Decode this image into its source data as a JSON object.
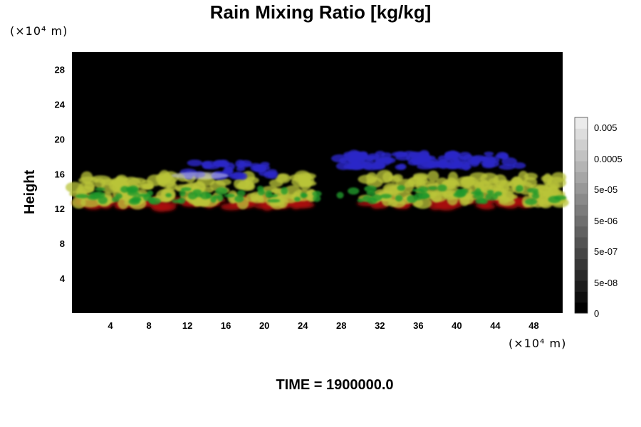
{
  "chart_data": {
    "type": "heatmap",
    "title": "Rain Mixing Ratio [kg/kg]",
    "ylabel": "Height",
    "xlabel": "",
    "x_unit": "(×10⁴ m)",
    "y_unit": "(×10⁴ m)",
    "xlim": [
      0,
      51
    ],
    "ylim": [
      0,
      30
    ],
    "x_ticks": [
      4,
      8,
      12,
      16,
      20,
      24,
      28,
      32,
      36,
      40,
      44,
      48
    ],
    "y_ticks": [
      4,
      8,
      12,
      16,
      20,
      24,
      28
    ],
    "background_color": "#000000",
    "colorbar": {
      "labels": [
        "0.005",
        "0.0005",
        "5e-05",
        "5e-06",
        "5e-07",
        "5e-08",
        "0"
      ],
      "levels": 18
    },
    "features": [
      {
        "layer": "red-base",
        "color": "#a8120c",
        "x_range": [
          1,
          50.5
        ],
        "y_range": [
          12.2,
          13.2
        ]
      },
      {
        "layer": "yellow-core",
        "color": "#b9c43a",
        "x_range": [
          0,
          51
        ],
        "y_range": [
          12.6,
          15.8
        ]
      },
      {
        "layer": "green-fringe",
        "color": "#1f9a2a",
        "x_range": [
          0,
          51
        ],
        "y_range": [
          12.8,
          14.4
        ]
      },
      {
        "layer": "blue-upper",
        "color": "#2a28c8",
        "x_range": [
          11.5,
          46.5
        ],
        "y_range": [
          15.7,
          18.3
        ]
      }
    ]
  },
  "footer": {
    "time_label": "TIME = 1900000.0"
  }
}
